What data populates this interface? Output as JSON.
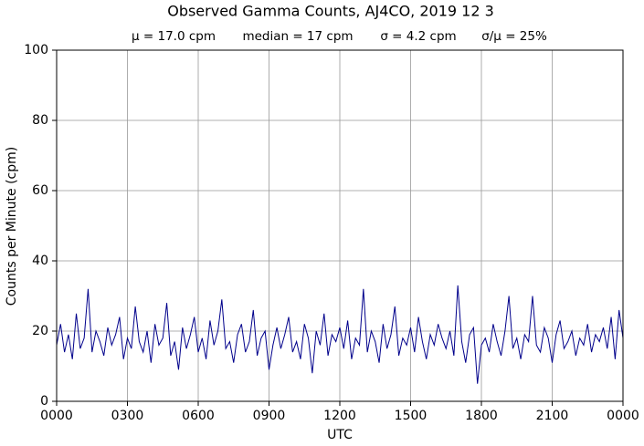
{
  "chart_data": {
    "type": "line",
    "title": "Observed Gamma Counts, AJ4CO, 2019 12 3",
    "annotations": [
      "μ = 17.0 cpm",
      "median = 17 cpm",
      "σ = 4.2 cpm",
      "σ/μ = 25%"
    ],
    "x_label": "UTC",
    "y_label": "Counts per Minute (cpm)",
    "xlim": [
      0,
      1440
    ],
    "xticks": [
      {
        "value": 0,
        "label": "0000"
      },
      {
        "value": 180,
        "label": "0300"
      },
      {
        "value": 360,
        "label": "0600"
      },
      {
        "value": 540,
        "label": "0900"
      },
      {
        "value": 720,
        "label": "1200"
      },
      {
        "value": 900,
        "label": "1500"
      },
      {
        "value": 1080,
        "label": "1800"
      },
      {
        "value": 1260,
        "label": "2100"
      },
      {
        "value": 1440,
        "label": "0000"
      }
    ],
    "ylim": [
      0,
      100
    ],
    "yticks": [
      0,
      20,
      40,
      60,
      80,
      100
    ],
    "grid": true,
    "series": [
      {
        "color": "#00008b",
        "x": [
          0,
          10,
          20,
          30,
          40,
          50,
          60,
          70,
          80,
          90,
          100,
          110,
          120,
          130,
          140,
          150,
          160,
          170,
          180,
          190,
          200,
          210,
          220,
          230,
          240,
          250,
          260,
          270,
          280,
          290,
          300,
          310,
          320,
          330,
          340,
          350,
          360,
          370,
          380,
          390,
          400,
          410,
          420,
          430,
          440,
          450,
          460,
          470,
          480,
          490,
          500,
          510,
          520,
          530,
          540,
          550,
          560,
          570,
          580,
          590,
          600,
          610,
          620,
          630,
          640,
          650,
          660,
          670,
          680,
          690,
          700,
          710,
          720,
          730,
          740,
          750,
          760,
          770,
          780,
          790,
          800,
          810,
          820,
          830,
          840,
          850,
          860,
          870,
          880,
          890,
          900,
          910,
          920,
          930,
          940,
          950,
          960,
          970,
          980,
          990,
          1000,
          1010,
          1020,
          1030,
          1040,
          1050,
          1060,
          1070,
          1080,
          1090,
          1100,
          1110,
          1120,
          1130,
          1140,
          1150,
          1160,
          1170,
          1180,
          1190,
          1200,
          1210,
          1220,
          1230,
          1240,
          1250,
          1260,
          1270,
          1280,
          1290,
          1300,
          1310,
          1320,
          1330,
          1340,
          1350,
          1360,
          1370,
          1380,
          1390,
          1400,
          1410,
          1420,
          1430,
          1440
        ],
        "values": [
          16,
          22,
          14,
          19,
          12,
          25,
          15,
          18,
          32,
          14,
          20,
          17,
          13,
          21,
          16,
          19,
          24,
          12,
          18,
          15,
          27,
          17,
          14,
          20,
          11,
          22,
          16,
          18,
          28,
          13,
          17,
          9,
          21,
          15,
          19,
          24,
          14,
          18,
          12,
          23,
          16,
          20,
          29,
          15,
          17,
          11,
          19,
          22,
          14,
          17,
          26,
          13,
          18,
          20,
          9,
          16,
          21,
          15,
          19,
          24,
          14,
          17,
          12,
          22,
          18,
          8,
          20,
          16,
          25,
          13,
          19,
          17,
          21,
          15,
          23,
          12,
          18,
          16,
          32,
          14,
          20,
          17,
          11,
          22,
          15,
          19,
          27,
          13,
          18,
          16,
          21,
          14,
          24,
          17,
          12,
          19,
          16,
          22,
          18,
          15,
          20,
          13,
          33,
          17,
          11,
          19,
          21,
          5,
          16,
          18,
          14,
          22,
          17,
          13,
          20,
          30,
          15,
          18,
          12,
          19,
          17,
          30,
          16,
          14,
          21,
          18,
          11,
          19,
          23,
          15,
          17,
          20,
          13,
          18,
          16,
          22,
          14,
          19,
          17,
          21,
          15,
          24,
          12,
          26,
          18
        ]
      }
    ]
  }
}
